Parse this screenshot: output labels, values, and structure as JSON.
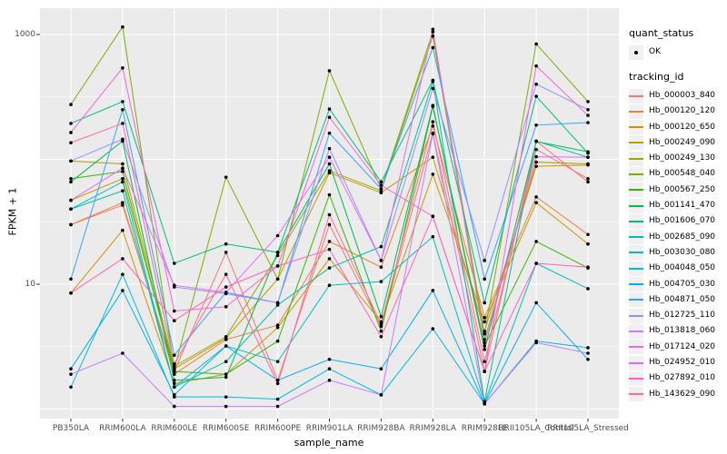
{
  "chart_data": {
    "type": "line",
    "title": "",
    "xlabel": "sample_name",
    "ylabel": "FPKM + 1",
    "y_scale": "log10",
    "ylim": [
      0.93,
      1620
    ],
    "grid": true,
    "legend_position": "right",
    "panel_bg": "#EBEBEB",
    "grid_color": "#FFFFFF",
    "tick_color": "#333333",
    "axis_text_color": "#4d4d4d",
    "point_color": "#000000",
    "y_ticks": [
      {
        "value": 1000,
        "label": "1000"
      },
      {
        "value": 10,
        "label": "10"
      }
    ],
    "y_gridlines_major": [
      1,
      10,
      100,
      1000
    ],
    "y_gridlines_minor": [
      3.162,
      31.62,
      316.2
    ],
    "categories": [
      "PB350LA",
      "RRIM600LA",
      "RRIM600LE",
      "RRIM600SE",
      "RRIM600PE",
      "RRIM901LA",
      "RRIM928BA",
      "RRIM928LA",
      "RRIM928LE",
      "RRII105LA_Control",
      "RRII105LA_Stressed"
    ],
    "series": [
      {
        "name": "Hb_000003_840",
        "color": "#F8766D",
        "values": [
          30,
          43,
          2.0,
          18,
          1.7,
          30,
          4.6,
          162,
          2.0,
          140,
          66
        ]
      },
      {
        "name": "Hb_000120_120",
        "color": "#EA8331",
        "values": [
          30,
          45,
          1.9,
          3.6,
          4.7,
          22,
          13.7,
          185,
          5.4,
          50,
          25
        ]
      },
      {
        "name": "Hb_000120_650",
        "color": "#D89000",
        "values": [
          8.5,
          27,
          1.6,
          1.9,
          4.5,
          16,
          5.0,
          76,
          5.0,
          45,
          21
        ]
      },
      {
        "name": "Hb_000249_090",
        "color": "#C09B00",
        "values": [
          47,
          70,
          2.1,
          3.7,
          11,
          78,
          54,
          104,
          4.2,
          88,
          90
        ]
      },
      {
        "name": "Hb_000249_130",
        "color": "#A3A500",
        "values": [
          97,
          92,
          2.2,
          3.8,
          17,
          81,
          56,
          970,
          3.6,
          95,
          92
        ]
      },
      {
        "name": "Hb_000548_040",
        "color": "#7CAE00",
        "values": [
          275,
          1150,
          2.1,
          72,
          11,
          512,
          58,
          1050,
          4.0,
          840,
          290
        ]
      },
      {
        "name": "Hb_000567_250",
        "color": "#39B600",
        "values": [
          70,
          80,
          2.0,
          1.9,
          3.5,
          52,
          4.2,
          265,
          3.2,
          22,
          13.5
        ]
      },
      {
        "name": "Hb_001141_470",
        "color": "#00BB4E",
        "values": [
          66,
          140,
          1.7,
          1.8,
          18,
          92,
          5.5,
          270,
          3.0,
          139,
          115
        ]
      },
      {
        "name": "Hb_001606_070",
        "color": "#00BF7D",
        "values": [
          194,
          290,
          14.7,
          21,
          18,
          253,
          66,
          430,
          7.1,
          320,
          112
        ]
      },
      {
        "name": "Hb_002685_090",
        "color": "#00C1A3",
        "values": [
          40,
          56,
          1.5,
          2.4,
          6.8,
          13.5,
          20,
          420,
          1.15,
          140,
          104
        ]
      },
      {
        "name": "Hb_003030_080",
        "color": "#00BFC4",
        "values": [
          40,
          66,
          1.5,
          3.2,
          2.4,
          9.8,
          10.5,
          24,
          1.12,
          14.7,
          9.2
        ]
      },
      {
        "name": "Hb_004048_050",
        "color": "#00BAE0",
        "values": [
          1.5,
          12,
          1.25,
          1.25,
          1.2,
          2.1,
          1.3,
          4.4,
          1.1,
          3.5,
          3.1
        ]
      },
      {
        "name": "Hb_004705_030",
        "color": "#00B0F6",
        "values": [
          2.1,
          8.9,
          1.3,
          3.2,
          1.7,
          2.5,
          2.1,
          8.9,
          1.1,
          7.1,
          2.5
        ]
      },
      {
        "name": "Hb_004871_050",
        "color": "#35A2FF",
        "values": [
          11,
          250,
          2.7,
          8.6,
          7.1,
          162,
          58,
          785,
          11,
          188,
          197
        ]
      },
      {
        "name": "Hb_012725_110",
        "color": "#9590FF",
        "values": [
          97,
          145,
          9.5,
          8.4,
          7.1,
          122,
          15.5,
          370,
          15.5,
          400,
          250
        ]
      },
      {
        "name": "Hb_013818_060",
        "color": "#C77CFF",
        "values": [
          1.9,
          2.8,
          1.05,
          1.05,
          1.05,
          1.7,
          1.3,
          160,
          1.1,
          3.4,
          2.8
        ]
      },
      {
        "name": "Hb_017124_020",
        "color": "#E76BF3",
        "values": [
          47,
          85,
          9.8,
          8.6,
          24.5,
          104,
          15.5,
          1100,
          3.4,
          105,
          104
        ]
      },
      {
        "name": "Hb_024952_010",
        "color": "#FA62DB",
        "values": [
          164,
          540,
          6.1,
          6.6,
          14,
          217,
          62,
          35,
          2.0,
          560,
          225
        ]
      },
      {
        "name": "Hb_027892_010",
        "color": "#FF62BC",
        "values": [
          8.5,
          16,
          5.1,
          9.5,
          14,
          19,
          3.8,
          35,
          2.0,
          14.7,
          13.7
        ]
      },
      {
        "name": "Hb_143629_090",
        "color": "#FF6A98",
        "values": [
          136,
          194,
          2.3,
          12,
          1.6,
          36,
          4.8,
          200,
          2.4,
          120,
          70
        ]
      }
    ]
  },
  "legend": {
    "quant_status": {
      "title": "quant_status",
      "items": [
        {
          "label": "OK",
          "marker": "point"
        }
      ]
    },
    "tracking_id": {
      "title": "tracking_id"
    }
  }
}
